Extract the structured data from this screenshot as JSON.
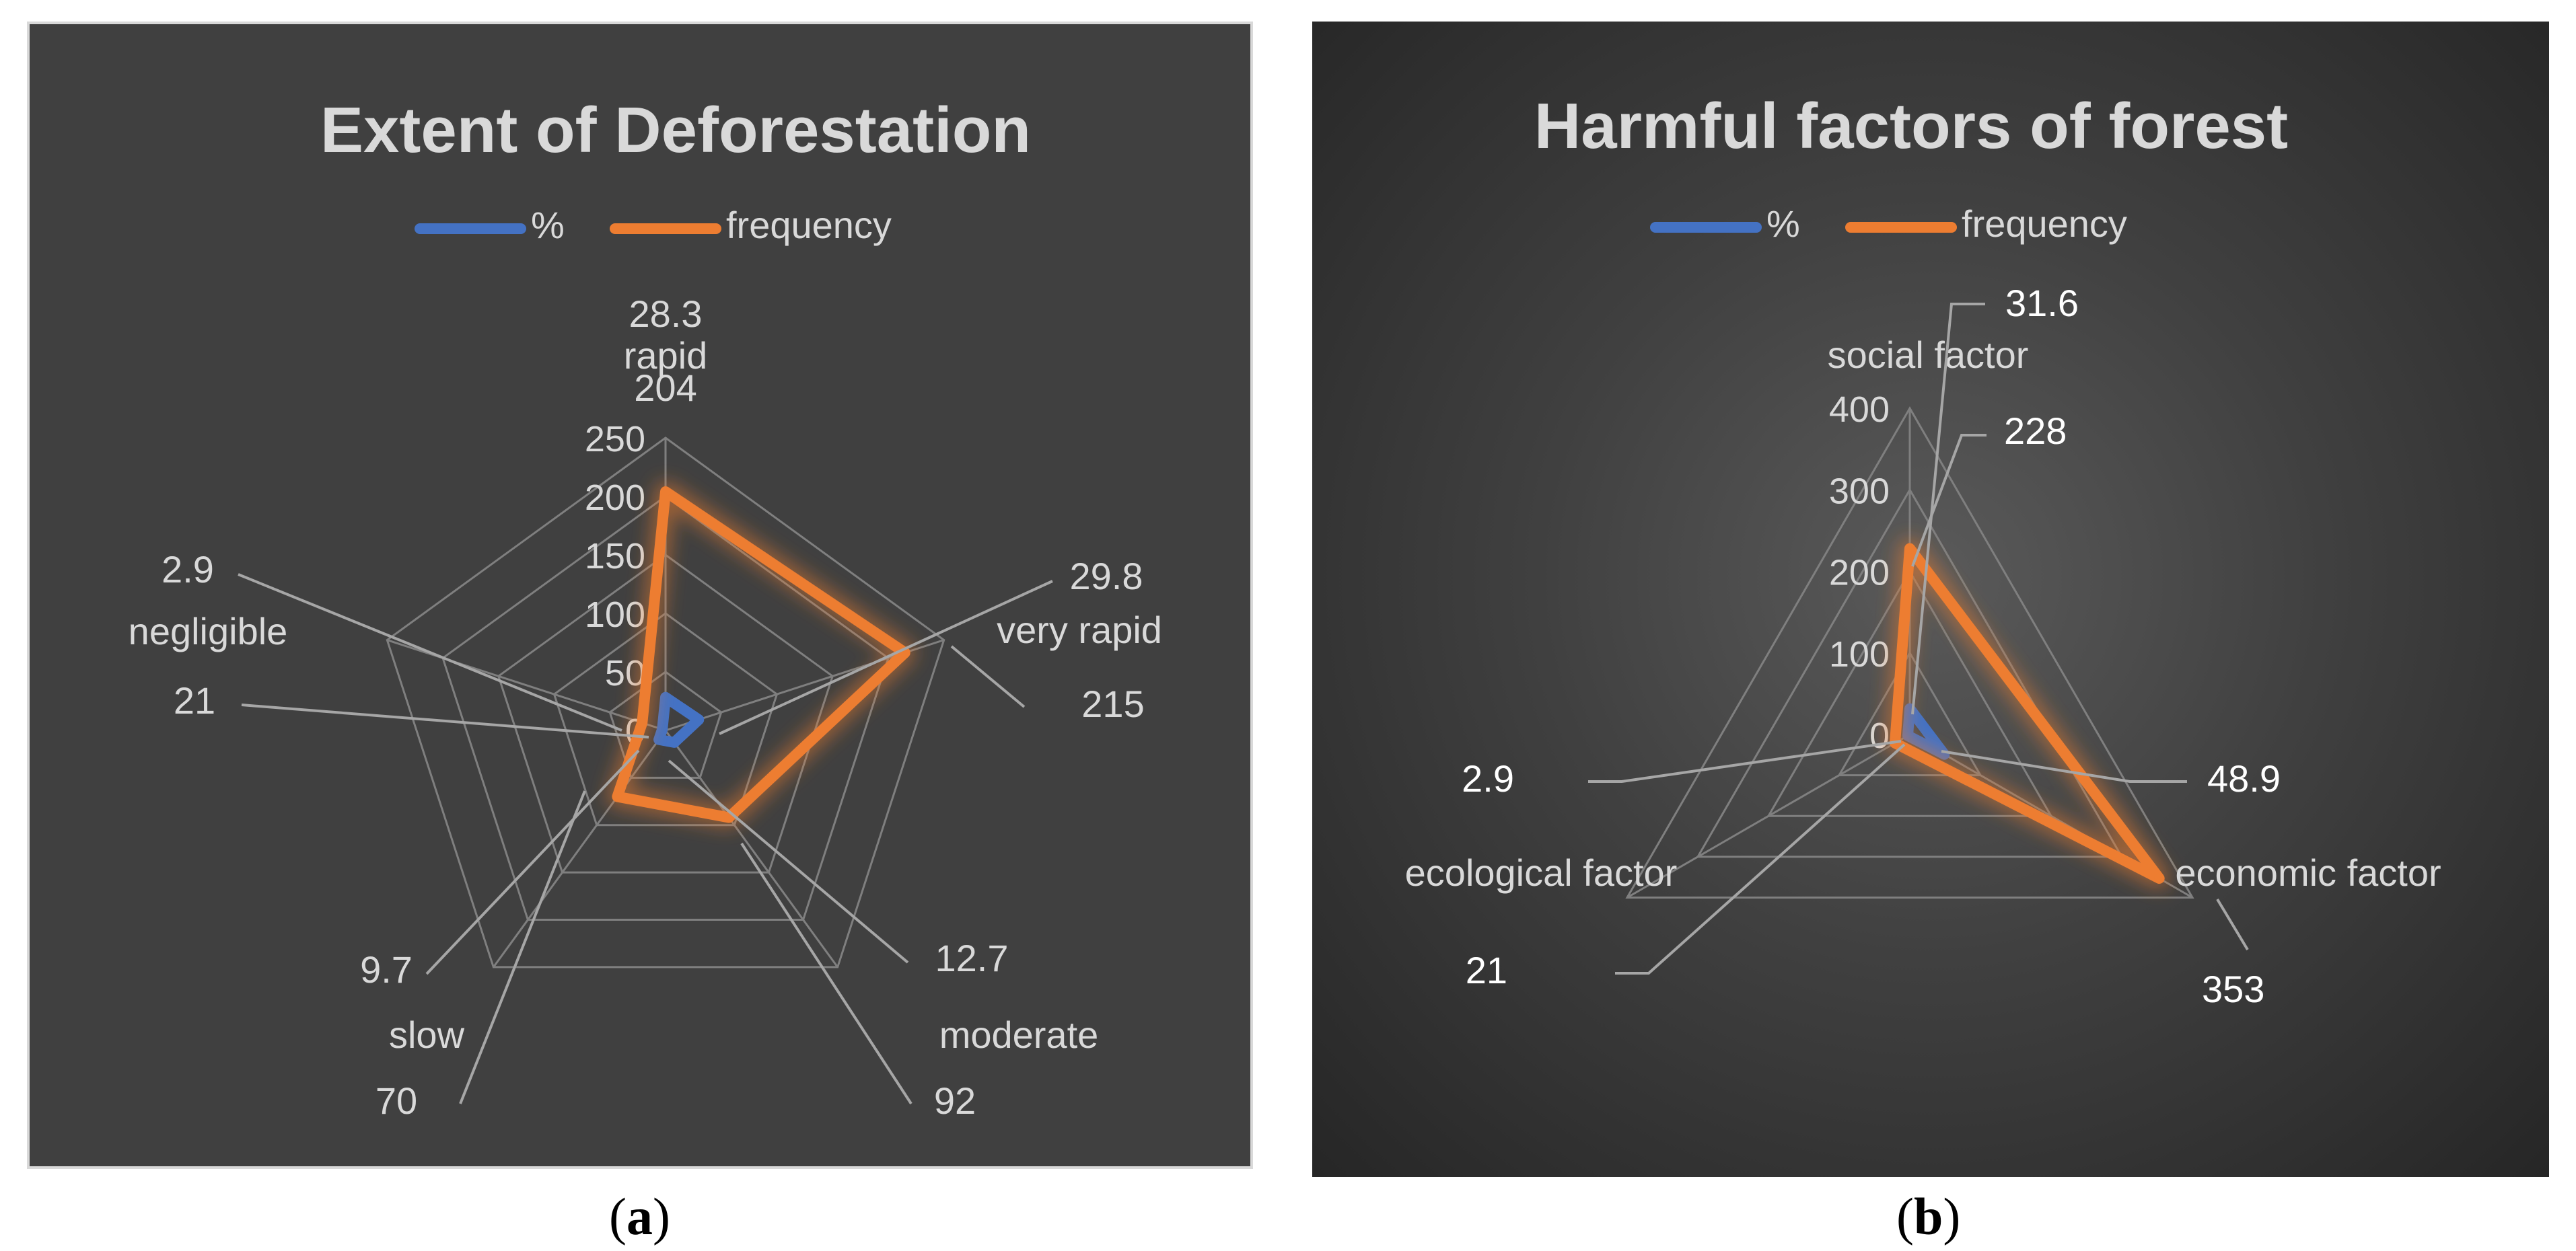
{
  "charts": [
    {
      "id": "a",
      "caption_letter": "a",
      "chart_data": {
        "type": "radar",
        "title": "Extent of Deforestation",
        "categories": [
          "rapid",
          "very rapid",
          "moderate",
          "slow",
          "negligible"
        ],
        "series": [
          {
            "name": "%",
            "color": "#4472c4",
            "values": [
              28.3,
              29.8,
              12.7,
              9.7,
              2.9
            ]
          },
          {
            "name": "frequency",
            "color": "#ed7d31",
            "values": [
              204,
              215,
              92,
              70,
              21
            ]
          }
        ],
        "rlim": [
          0,
          250
        ],
        "ticks": [
          0,
          50,
          100,
          150,
          200,
          250
        ],
        "legend_position": "top"
      }
    },
    {
      "id": "b",
      "caption_letter": "b",
      "chart_data": {
        "type": "radar",
        "title": "Harmful factors of forest",
        "categories": [
          "social factor",
          "economic factor",
          "ecological factor"
        ],
        "series": [
          {
            "name": "%",
            "color": "#4472c4",
            "values": [
              31.6,
              48.9,
              2.9
            ]
          },
          {
            "name": "frequency",
            "color": "#ed7d31",
            "values": [
              228,
              353,
              21
            ]
          }
        ],
        "rlim": [
          0,
          400
        ],
        "ticks": [
          0,
          100,
          200,
          300,
          400
        ],
        "legend_position": "top"
      }
    }
  ]
}
